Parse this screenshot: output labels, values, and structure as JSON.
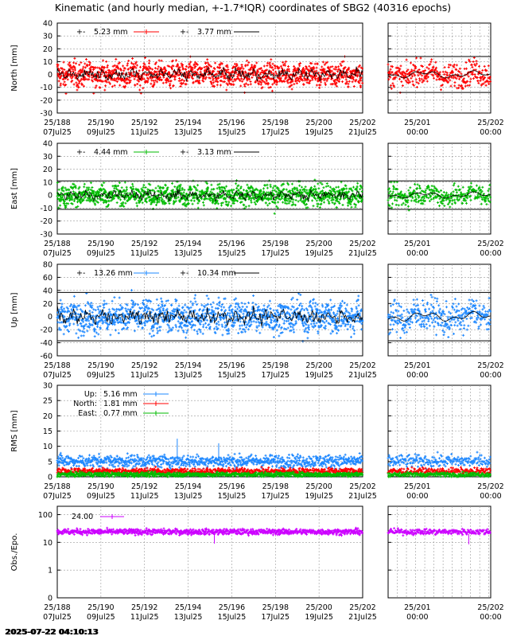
{
  "chart_data": {
    "title": "Kinematic (and hourly median, +-1.7*IQR) coordinates of SBG2 (40316 epochs)",
    "timestamp": "2025-07-22 04:10:13",
    "main_ticks": [
      {
        "doy": "25/188",
        "date": "07Jul25"
      },
      {
        "doy": "25/190",
        "date": "09Jul25"
      },
      {
        "doy": "25/192",
        "date": "11Jul25"
      },
      {
        "doy": "25/194",
        "date": "13Jul25"
      },
      {
        "doy": "25/196",
        "date": "15Jul25"
      },
      {
        "doy": "25/198",
        "date": "17Jul25"
      },
      {
        "doy": "25/200",
        "date": "19Jul25"
      },
      {
        "doy": "25/202",
        "date": "21Jul25"
      }
    ],
    "zoom_ticks": [
      {
        "doy": "25/201",
        "time": "00:00"
      },
      {
        "doy": "25/202",
        "time": "00:00"
      }
    ],
    "x_range_days": [
      188,
      202
    ],
    "zoom_range_days": [
      200.6,
      202
    ],
    "panels": [
      {
        "id": "north",
        "type": "scatter",
        "ylabel": "North [mm]",
        "color": "#ff0000",
        "ylim": [
          -30,
          40
        ],
        "yticks": [
          -30,
          -20,
          -10,
          0,
          10,
          20,
          30,
          40
        ],
        "hlines": [
          14,
          -14
        ],
        "spread": 5.23,
        "legend": [
          {
            "prefix": "+-",
            "value": "5.23 mm",
            "kind": "raw"
          },
          {
            "prefix": "+-",
            "value": "3.77 mm",
            "kind": "median"
          }
        ]
      },
      {
        "id": "east",
        "type": "scatter",
        "ylabel": "East [mm]",
        "color": "#00bb00",
        "ylim": [
          -30,
          40
        ],
        "yticks": [
          -30,
          -20,
          -10,
          0,
          10,
          20,
          30,
          40
        ],
        "hlines": [
          11,
          -11
        ],
        "spread": 4.44,
        "legend": [
          {
            "prefix": "+-",
            "value": "4.44 mm",
            "kind": "raw"
          },
          {
            "prefix": "+-",
            "value": "3.13 mm",
            "kind": "median"
          }
        ]
      },
      {
        "id": "up",
        "type": "scatter",
        "ylabel": "Up [mm]",
        "color": "#1e88ff",
        "ylim": [
          -60,
          80
        ],
        "yticks": [
          -60,
          -40,
          -20,
          0,
          20,
          40,
          60,
          80
        ],
        "hlines": [
          37,
          -37
        ],
        "spread": 13.26,
        "legend": [
          {
            "prefix": "+-",
            "value": "13.26 mm",
            "kind": "raw"
          },
          {
            "prefix": "+-",
            "value": "10.34 mm",
            "kind": "median"
          }
        ]
      },
      {
        "id": "rms",
        "type": "scatter",
        "ylabel": "RMS [mm]",
        "ylim": [
          0,
          30
        ],
        "yticks": [
          0,
          5,
          10,
          15,
          20,
          25,
          30
        ],
        "series": [
          {
            "name": "Up:",
            "value": "5.16 mm",
            "mean": 5.16,
            "color": "#1e88ff"
          },
          {
            "name": "North:",
            "value": "1.81 mm",
            "mean": 1.81,
            "color": "#ff0000"
          },
          {
            "name": "East:",
            "value": "0.77 mm",
            "mean": 0.77,
            "color": "#00bb00"
          }
        ]
      },
      {
        "id": "obs",
        "type": "scatter",
        "ylabel": "Obs./Epo.",
        "color": "#cc00ff",
        "yscale": "log",
        "ylim": [
          0.1,
          200
        ],
        "yticks": [
          0.1,
          1,
          10,
          100
        ],
        "ytick_labels": [
          "0",
          "1",
          "10",
          "100"
        ],
        "mean": 24.0,
        "legend": [
          {
            "value": "24.00"
          }
        ]
      }
    ]
  }
}
